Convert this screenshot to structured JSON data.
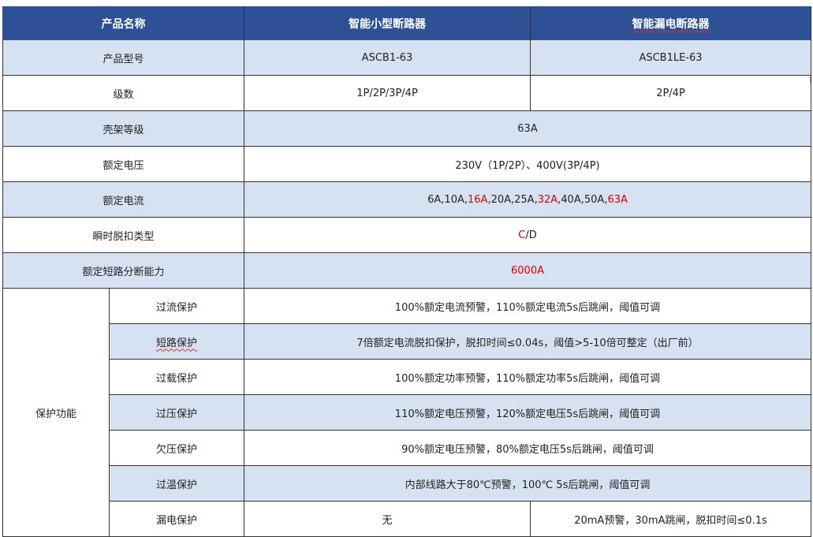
{
  "header": {
    "col1": "产品名称",
    "col2": "智能小型断路器",
    "col3": "智能漏电断路器"
  },
  "rows": {
    "model": {
      "label": "产品型号",
      "mcb": "ASCB1-63",
      "rcbo": "ASCB1LE-63"
    },
    "poles": {
      "label": "级数",
      "mcb": "1P/2P/3P/4P",
      "rcbo": "2P/4P"
    },
    "frame": {
      "label": "壳架等级",
      "value": "63A"
    },
    "voltage": {
      "label": "额定电压",
      "value": "230V（1P/2P）、400V(3P/4P)"
    },
    "current": {
      "label": "额定电流",
      "segments": [
        {
          "text": "6A,10A,",
          "red": false
        },
        {
          "text": "16A",
          "red": true
        },
        {
          "text": ",20A,25A,",
          "red": false
        },
        {
          "text": "32A",
          "red": true
        },
        {
          "text": ",40A,50A,",
          "red": false
        },
        {
          "text": "63A",
          "red": true
        }
      ]
    },
    "trip_type": {
      "label": "瞬时脱扣类型",
      "red_part": "C",
      "rest": "/D"
    },
    "breaking": {
      "label": "额定短路分断能力",
      "value": "6000A"
    }
  },
  "protection": {
    "label": "保护功能",
    "items": [
      {
        "name": "过流保护",
        "value": "100%额定电流预警，110%额定电流5s后跳闸，阈值可调"
      },
      {
        "name": "短路保护",
        "value": "7倍额定电流脱扣保护，脱扣时间≤0.04s，阈值>5-10倍可整定（出厂前）"
      },
      {
        "name": "过载保护",
        "value": "100%额定功率预警，110%额定功率5s后跳闸，阈值可调"
      },
      {
        "name": "过压保护",
        "value": "110%额定电压预警，120%额定电压5s后跳闸，阈值可调"
      },
      {
        "name": "欠压保护",
        "value": "90%额定电压预警，80%额定电压5s后跳闸，阈值可调"
      },
      {
        "name": "过温保护",
        "value": "内部线路大于80℃预警，100℃ 5s后跳闸，阈值可调"
      }
    ],
    "leakage": {
      "name": "漏电保护",
      "mcb": "无",
      "rcbo": "20mA预警，30mA跳闸，脱扣时间≤0.1s"
    }
  },
  "colors": {
    "header_bg": "#2e5094",
    "alt_row_bg": "#d6e1f2",
    "highlight": "#e00000"
  }
}
